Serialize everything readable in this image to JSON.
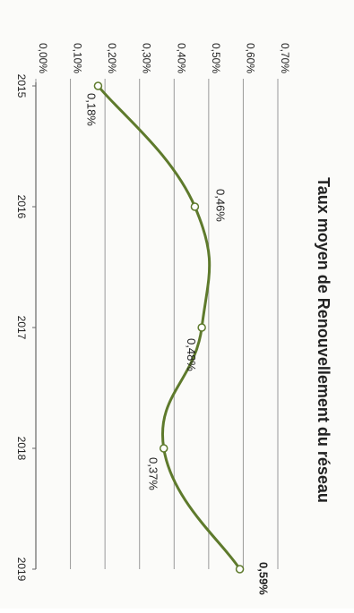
{
  "chart_data": {
    "type": "line",
    "title": "Taux moyen de Renouvellement du réseau",
    "xlabel": "",
    "ylabel": "",
    "categories": [
      "2015",
      "2016",
      "2017",
      "2018",
      "2019"
    ],
    "y_ticks": [
      "0,00%",
      "0,10%",
      "0,20%",
      "0,30%",
      "0,40%",
      "0,50%",
      "0,60%",
      "0,70%"
    ],
    "ylim": [
      0,
      0.7
    ],
    "grid": true,
    "legend": "none",
    "series": [
      {
        "values": [
          0.18,
          0.46,
          0.48,
          0.37,
          0.59
        ],
        "labels": [
          "0,18%",
          "0,46%",
          "0,48%",
          "0,37%",
          "0,59%"
        ]
      }
    ],
    "colors": {
      "line": "#5e7a2c",
      "marker_fill": "#ffffff",
      "grid": "#9a9a9a",
      "text": "#222222"
    }
  }
}
